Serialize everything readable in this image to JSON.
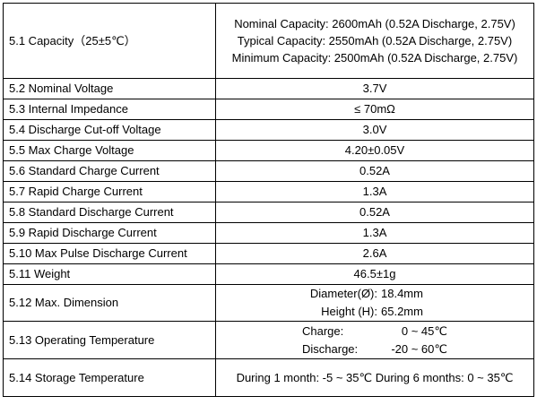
{
  "spec_table": {
    "rows": [
      {
        "label": "5.1 Capacity（25±5℃）",
        "value": "Nominal Capacity:  2600mAh (0.52A Discharge, 2.75V) Typical Capacity:  2550mAh (0.52A Discharge, 2.75V)   Minimum Capacity: 2500mAh (0.52A Discharge, 2.75V)"
      },
      {
        "label": "5.2 Nominal Voltage",
        "value": "3.7V"
      },
      {
        "label": "5.3 Internal Impedance",
        "value": "≤ 70mΩ"
      },
      {
        "label": "5.4 Discharge Cut-off Voltage",
        "value": "3.0V"
      },
      {
        "label": "5.5 Max Charge Voltage",
        "value": "4.20±0.05V"
      },
      {
        "label": "5.6 Standard Charge Current",
        "value": "0.52A"
      },
      {
        "label": "5.7 Rapid Charge Current",
        "value": "1.3A"
      },
      {
        "label": "5.8 Standard Discharge Current",
        "value": "0.52A"
      },
      {
        "label": "5.9 Rapid Discharge Current",
        "value": "1.3A"
      },
      {
        "label": "5.10 Max Pulse Discharge Current",
        "value": "2.6A"
      },
      {
        "label": "5.11 Weight",
        "value": "46.5±1g"
      },
      {
        "label": "5.12 Max. Dimension",
        "lines": [
          {
            "label": "Diameter(Ø):",
            "value": "18.4mm"
          },
          {
            "label": "Height (H):",
            "value": "65.2mm"
          }
        ]
      },
      {
        "label": "5.13 Operating Temperature",
        "lines": [
          {
            "label": "Charge:",
            "value": "0 ~ 45℃"
          },
          {
            "label": "Discharge:",
            "value": "-20 ~ 60℃"
          }
        ]
      },
      {
        "label": "5.14 Storage Temperature",
        "value": "During 1 month: -5 ~ 35℃  During 6 months: 0 ~ 35℃"
      }
    ]
  }
}
